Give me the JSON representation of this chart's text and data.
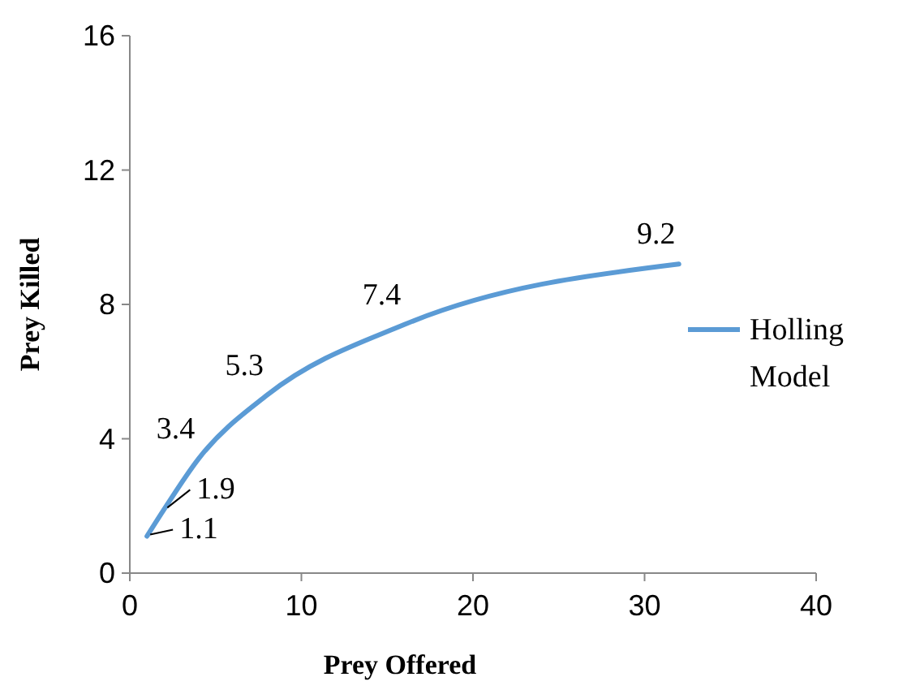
{
  "chart_data": {
    "type": "line",
    "xlabel": "Prey Offered",
    "ylabel": "Prey Killed",
    "x": [
      1,
      2,
      4,
      8,
      16,
      32
    ],
    "series": [
      {
        "name": "Holling Model",
        "color": "#5b9bd5",
        "values": [
          1.1,
          1.9,
          3.4,
          5.3,
          7.4,
          9.2
        ]
      }
    ],
    "xlim": [
      0,
      40
    ],
    "xticks": [
      0,
      10,
      20,
      30,
      40
    ],
    "ylim": [
      0,
      16
    ],
    "yticks": [
      0,
      4,
      8,
      12,
      16
    ],
    "data_labels": true,
    "legend": "right"
  }
}
